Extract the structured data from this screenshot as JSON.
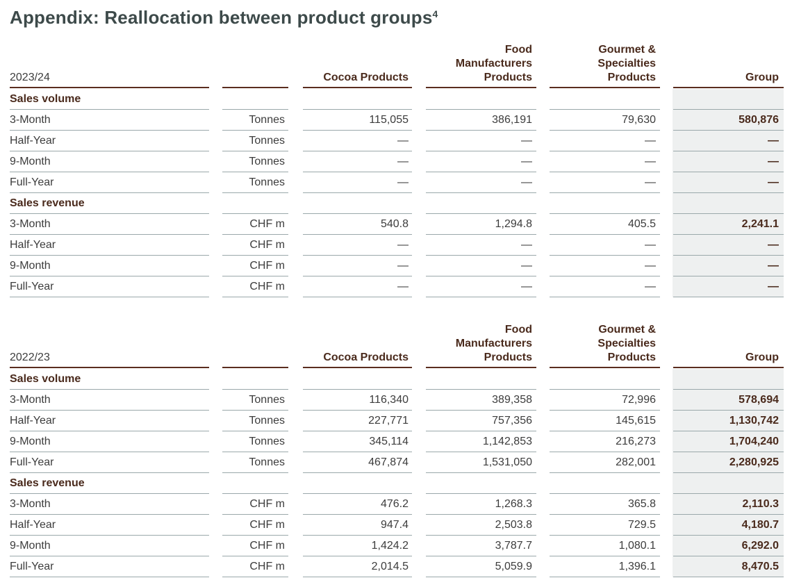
{
  "title": "Appendix: Reallocation between product groups",
  "title_footnote": "4",
  "headers": {
    "cocoa": "Cocoa Products",
    "food_line1": "Food",
    "food_line2": "Manufacturers",
    "food_line3": "Products",
    "gourmet_line1": "Gourmet &",
    "gourmet_line2": "Specialties",
    "gourmet_line3": "Products",
    "group": "Group"
  },
  "tables": [
    {
      "year": "2023/24",
      "rows": [
        {
          "label": "Sales volume",
          "section": true
        },
        {
          "label": "3-Month",
          "unit": "Tonnes",
          "cocoa": "115,055",
          "food": "386,191",
          "gourmet": "79,630",
          "group": "580,876"
        },
        {
          "label": "Half-Year",
          "unit": "Tonnes",
          "cocoa": "—",
          "food": "—",
          "gourmet": "—",
          "group": "—"
        },
        {
          "label": "9-Month",
          "unit": "Tonnes",
          "cocoa": "—",
          "food": "—",
          "gourmet": "—",
          "group": "—"
        },
        {
          "label": "Full-Year",
          "unit": "Tonnes",
          "cocoa": "—",
          "food": "—",
          "gourmet": "—",
          "group": "—"
        },
        {
          "label": "Sales revenue",
          "section": true
        },
        {
          "label": "3-Month",
          "unit": "CHF m",
          "cocoa": "540.8",
          "food": "1,294.8",
          "gourmet": "405.5",
          "group": "2,241.1"
        },
        {
          "label": "Half-Year",
          "unit": "CHF m",
          "cocoa": "—",
          "food": "—",
          "gourmet": "—",
          "group": "—"
        },
        {
          "label": "9-Month",
          "unit": "CHF m",
          "cocoa": "—",
          "food": "—",
          "gourmet": "—",
          "group": "—"
        },
        {
          "label": "Full-Year",
          "unit": "CHF m",
          "cocoa": "—",
          "food": "—",
          "gourmet": "—",
          "group": "—"
        }
      ]
    },
    {
      "year": "2022/23",
      "rows": [
        {
          "label": "Sales volume",
          "section": true
        },
        {
          "label": "3-Month",
          "unit": "Tonnes",
          "cocoa": "116,340",
          "food": "389,358",
          "gourmet": "72,996",
          "group": "578,694"
        },
        {
          "label": "Half-Year",
          "unit": "Tonnes",
          "cocoa": "227,771",
          "food": "757,356",
          "gourmet": "145,615",
          "group": "1,130,742"
        },
        {
          "label": "9-Month",
          "unit": "Tonnes",
          "cocoa": "345,114",
          "food": "1,142,853",
          "gourmet": "216,273",
          "group": "1,704,240"
        },
        {
          "label": "Full-Year",
          "unit": "Tonnes",
          "cocoa": "467,874",
          "food": "1,531,050",
          "gourmet": "282,001",
          "group": "2,280,925"
        },
        {
          "label": "Sales revenue",
          "section": true
        },
        {
          "label": "3-Month",
          "unit": "CHF m",
          "cocoa": "476.2",
          "food": "1,268.3",
          "gourmet": "365.8",
          "group": "2,110.3"
        },
        {
          "label": "Half-Year",
          "unit": "CHF m",
          "cocoa": "947.4",
          "food": "2,503.8",
          "gourmet": "729.5",
          "group": "4,180.7"
        },
        {
          "label": "9-Month",
          "unit": "CHF m",
          "cocoa": "1,424.2",
          "food": "3,787.7",
          "gourmet": "1,080.1",
          "group": "6,292.0"
        },
        {
          "label": "Full-Year",
          "unit": "CHF m",
          "cocoa": "2,014.5",
          "food": "5,059.9",
          "gourmet": "1,396.1",
          "group": "8,470.5"
        }
      ]
    }
  ]
}
